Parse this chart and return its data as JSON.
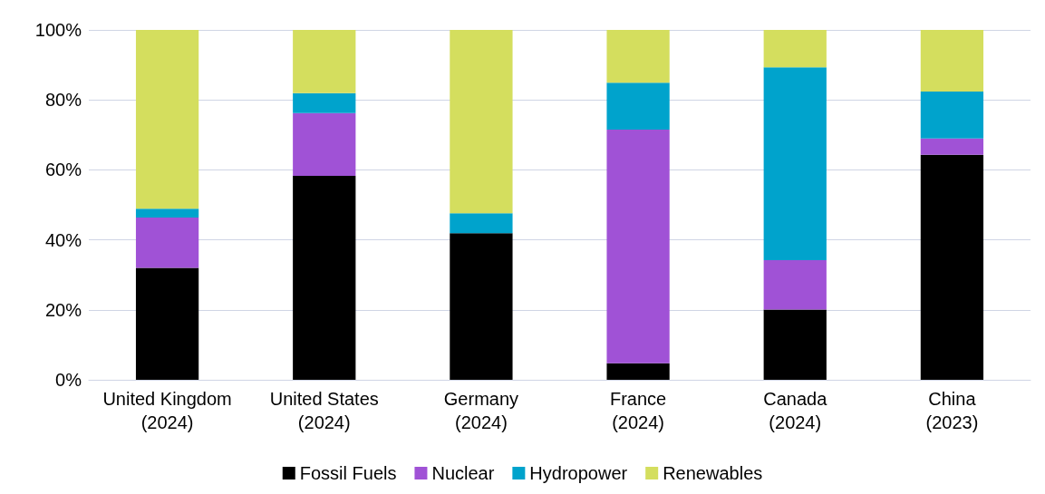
{
  "chart_data": {
    "type": "bar",
    "stacked": true,
    "categories": [
      "United Kingdom\n(2024)",
      "United States\n(2024)",
      "Germany\n(2024)",
      "France\n(2024)",
      "Canada\n(2024)",
      "China\n(2023)"
    ],
    "series": [
      {
        "name": "Fossil Fuels",
        "color": "#000000",
        "values": [
          32,
          58.3,
          41.9,
          4.7,
          20.1,
          64.3
        ]
      },
      {
        "name": "Nuclear",
        "color": "#a052d6",
        "values": [
          14.4,
          17.9,
          0,
          66.8,
          14.1,
          4.7
        ]
      },
      {
        "name": "Hydropower",
        "color": "#00a3cc",
        "values": [
          2.5,
          5.7,
          5.7,
          13.4,
          55.1,
          13.4
        ]
      },
      {
        "name": "Renewables",
        "color": "#d4de5e",
        "values": [
          51.1,
          18.1,
          52.4,
          15.1,
          10.7,
          17.6
        ]
      }
    ],
    "ylim": [
      0,
      100
    ],
    "yticks": [
      {
        "value": 0,
        "label": "0%"
      },
      {
        "value": 20,
        "label": "20%"
      },
      {
        "value": 40,
        "label": "40%"
      },
      {
        "value": 60,
        "label": "60%"
      },
      {
        "value": 80,
        "label": "80%"
      },
      {
        "value": 100,
        "label": "100%"
      }
    ],
    "grid": "y",
    "legend": "bottom"
  }
}
